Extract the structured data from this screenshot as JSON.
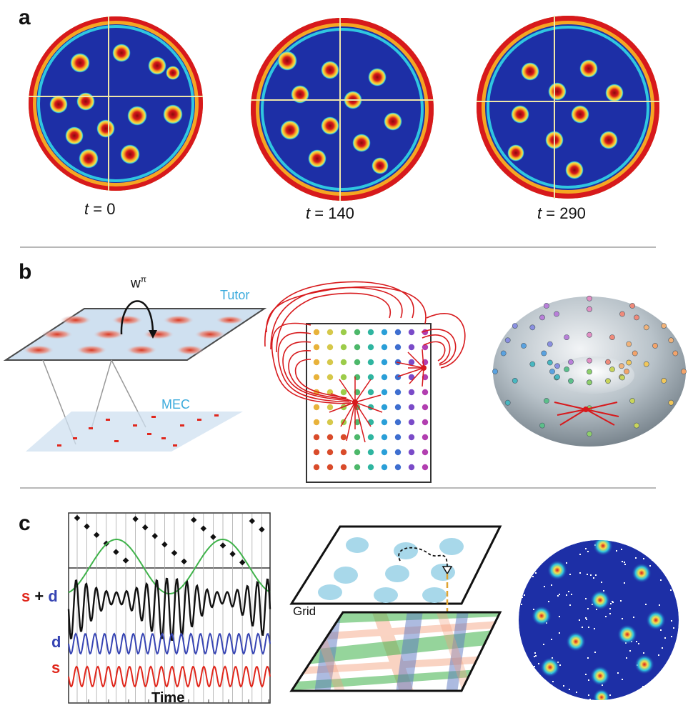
{
  "panels": {
    "a": {
      "letter": "a",
      "times": [
        {
          "t": "t",
          "val": "= 0"
        },
        {
          "t": "t",
          "val": "= 140"
        },
        {
          "t": "t",
          "val": "= 290"
        }
      ]
    },
    "b": {
      "letter": "b",
      "weight_label": "w",
      "weight_sup": "π",
      "tutor_label": "Tutor",
      "mec_label": "MEC"
    },
    "c": {
      "letter": "c",
      "s_label": "s",
      "plus": "+",
      "d_label": "d",
      "time_label": "Time",
      "grid_label": "Grid"
    }
  },
  "colors": {
    "deep_blue": "#1d2fa6",
    "red": "#d7191c",
    "orange": "#f5a623",
    "cyan": "#2fc7e0",
    "yellow": "#f4e04d",
    "signal_blue": "#3644b3",
    "signal_red": "#e0261b",
    "envelope": "#3fb24a",
    "label_blue": "#3aaadc"
  }
}
